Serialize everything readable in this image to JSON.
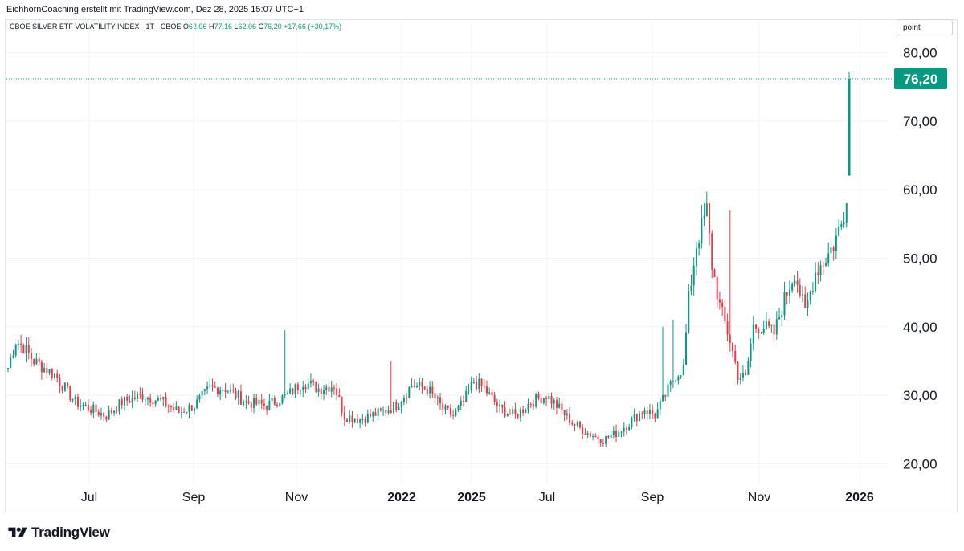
{
  "attribution": "EichhornCoaching erstellt mit TradingView.com, Dez 28, 2025 15:07 UTC+1",
  "legend": {
    "symbol": "CBOE SILVER ETF VOLATILITY INDEX · 1T · CBOE",
    "open_label": "O",
    "open": "62,06",
    "high_label": "H",
    "high": "77,16",
    "low_label": "L",
    "low": "62,06",
    "close_label": "C",
    "close": "76,20",
    "change": "+17,66 (+30,17%)"
  },
  "unit_label": "point",
  "brand": "TradingView",
  "colors": {
    "up": "#089981",
    "down": "#f23645",
    "grid": "#f0f3fa",
    "last_price_line": "#089981"
  },
  "chart_data": {
    "type": "candlestick",
    "title": "CBOE SILVER ETF VOLATILITY INDEX",
    "interval": "1T",
    "ylim": [
      17,
      83
    ],
    "yticks": [
      "20,00",
      "30,00",
      "40,00",
      "50,00",
      "60,00",
      "70,00",
      "80,00"
    ],
    "yvalues": [
      20,
      30,
      40,
      50,
      60,
      70,
      80
    ],
    "xticks": [
      {
        "label": "Jul",
        "bold": false
      },
      {
        "label": "Sep",
        "bold": false
      },
      {
        "label": "Nov",
        "bold": false
      },
      {
        "label": "2022",
        "bold": true
      },
      {
        "label": "2025",
        "bold": true
      },
      {
        "label": "Jul",
        "bold": false
      },
      {
        "label": "Sep",
        "bold": false
      },
      {
        "label": "Nov",
        "bold": false
      },
      {
        "label": "2026",
        "bold": true
      }
    ],
    "last_price": 76.2,
    "last_price_label": "76,20",
    "anchors": [
      [
        0,
        34
      ],
      [
        3,
        38
      ],
      [
        6,
        37
      ],
      [
        10,
        35
      ],
      [
        14,
        34
      ],
      [
        18,
        33
      ],
      [
        22,
        31
      ],
      [
        26,
        29
      ],
      [
        32,
        28
      ],
      [
        38,
        27
      ],
      [
        44,
        29
      ],
      [
        52,
        30
      ],
      [
        60,
        29
      ],
      [
        66,
        27.5
      ],
      [
        72,
        28.5
      ],
      [
        78,
        31
      ],
      [
        84,
        31
      ],
      [
        92,
        29
      ],
      [
        100,
        28.5
      ],
      [
        108,
        30
      ],
      [
        114,
        32
      ],
      [
        120,
        31
      ],
      [
        126,
        31.5
      ],
      [
        130,
        27
      ],
      [
        136,
        26.5
      ],
      [
        144,
        27.5
      ],
      [
        150,
        28.5
      ],
      [
        156,
        31.5
      ],
      [
        162,
        31
      ],
      [
        168,
        28
      ],
      [
        172,
        27
      ],
      [
        176,
        29
      ],
      [
        180,
        32
      ],
      [
        184,
        31
      ],
      [
        190,
        28
      ],
      [
        196,
        27
      ],
      [
        202,
        29
      ],
      [
        208,
        30
      ],
      [
        212,
        28.5
      ],
      [
        218,
        26
      ],
      [
        224,
        24.5
      ],
      [
        230,
        23.5
      ],
      [
        235,
        24.5
      ],
      [
        240,
        26
      ],
      [
        246,
        28
      ],
      [
        250,
        27
      ],
      [
        254,
        30
      ],
      [
        258,
        33
      ],
      [
        261,
        34
      ],
      [
        263,
        44
      ],
      [
        266,
        52
      ],
      [
        270,
        57
      ],
      [
        272,
        49
      ],
      [
        275,
        43
      ],
      [
        279,
        38
      ],
      [
        282,
        33
      ],
      [
        285,
        32.5
      ],
      [
        288,
        40
      ],
      [
        292,
        40
      ],
      [
        296,
        39
      ],
      [
        300,
        44
      ],
      [
        304,
        48
      ],
      [
        308,
        42
      ],
      [
        312,
        48
      ],
      [
        316,
        50
      ],
      [
        319,
        52
      ],
      [
        322,
        55
      ],
      [
        324,
        58
      ]
    ],
    "spikes": [
      {
        "index": 107,
        "high": 39.5
      },
      {
        "index": 148,
        "high": 35
      },
      {
        "index": 253,
        "high": 40
      },
      {
        "index": 257,
        "high": 41
      },
      {
        "index": 279,
        "high": 57
      }
    ],
    "final_candle": {
      "open": 62.06,
      "high": 77.16,
      "low": 62.06,
      "close": 76.2
    }
  }
}
